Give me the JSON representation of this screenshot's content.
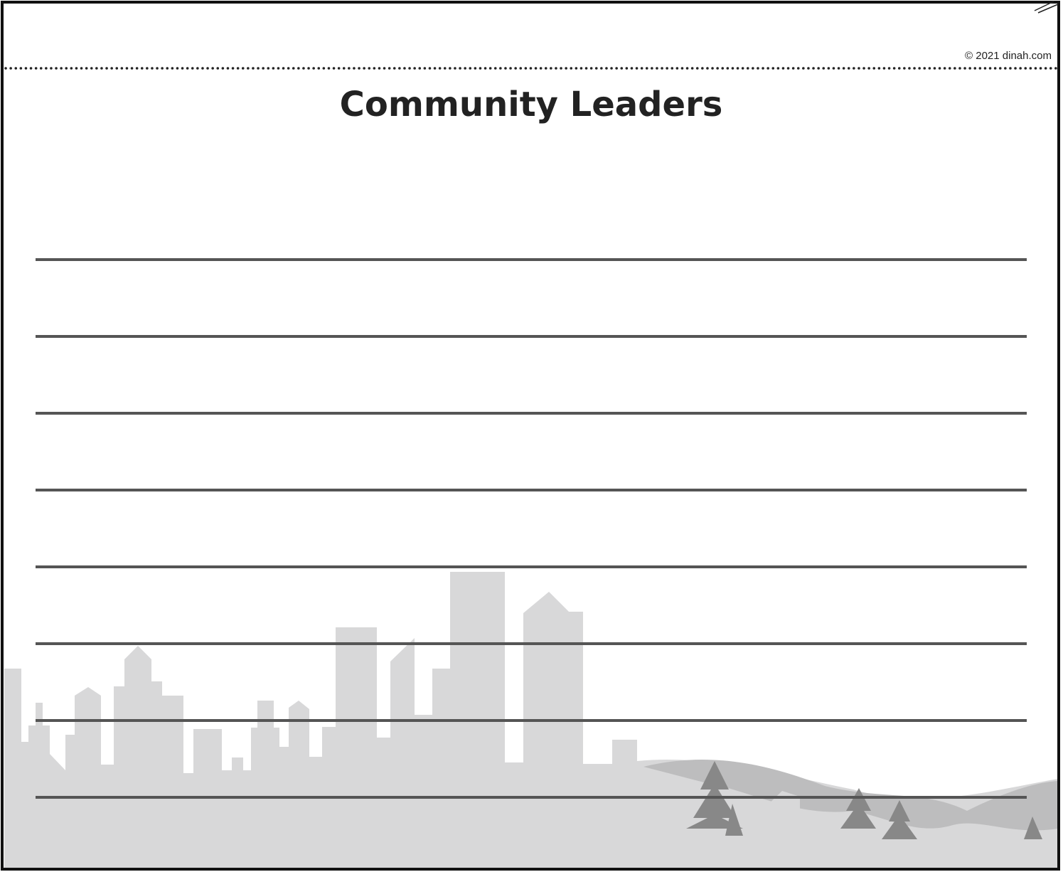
{
  "header": {
    "copyright": "© 2021 dinah.com",
    "title": "Community Leaders"
  }
}
